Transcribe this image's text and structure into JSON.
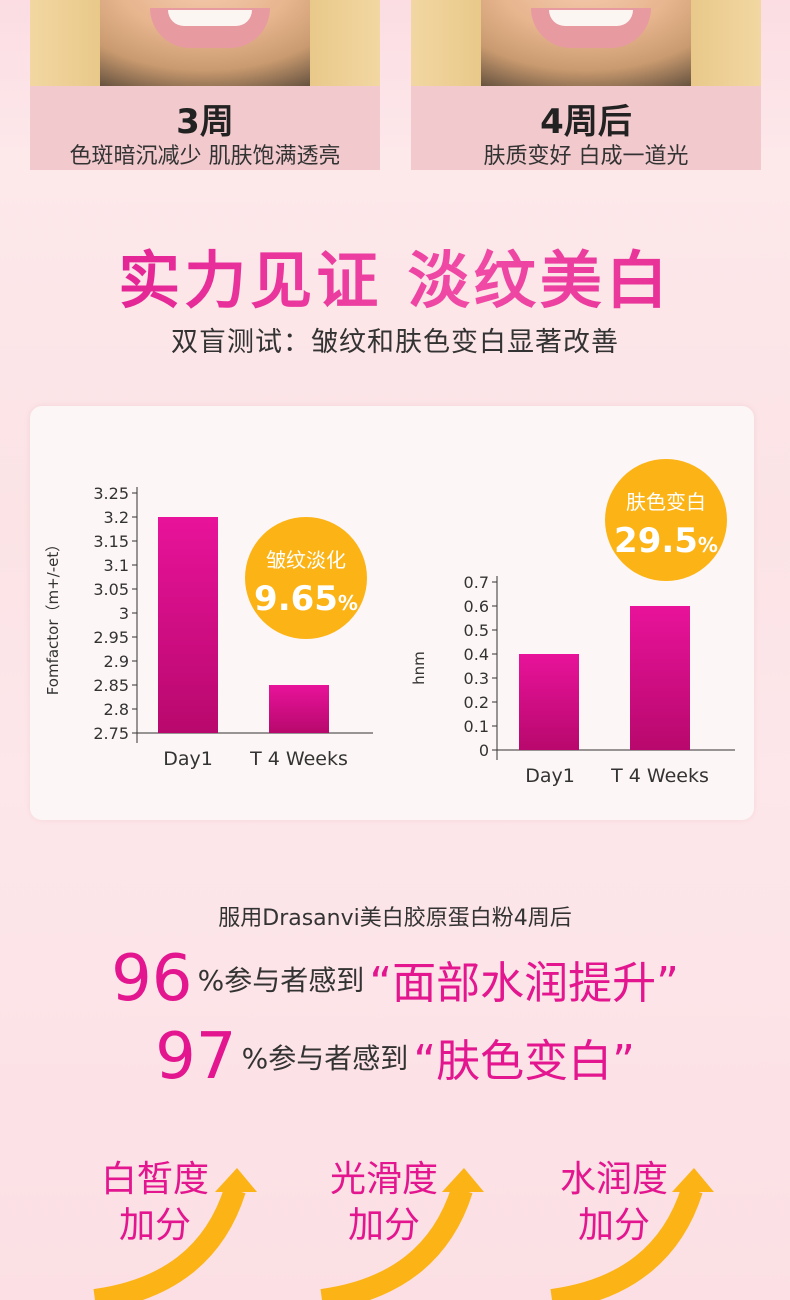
{
  "top_cards": [
    {
      "title": "3周",
      "subtitle": "色斑暗沉减少 肌肤饱满透亮"
    },
    {
      "title": "4周后",
      "subtitle": "肤质变好 白成一道光"
    }
  ],
  "section": {
    "title": "实力见证 淡纹美白",
    "subtitle": "双盲测试：皱纹和肤色变白显著改善"
  },
  "badges": [
    {
      "label": "皱纹淡化",
      "value": "9.65",
      "unit": "%"
    },
    {
      "label": "肤色变白",
      "value": "29.5",
      "unit": "%"
    }
  ],
  "chart_data": [
    {
      "type": "bar",
      "categories": [
        "Day1",
        "T 4 Weeks"
      ],
      "values": [
        3.2,
        2.85
      ],
      "ylabel": "Fomfactor（m+/-et）",
      "ylim": [
        2.75,
        3.25
      ],
      "yticks": [
        "2.75",
        "2.8",
        "2.85",
        "2.9",
        "2.95",
        "3",
        "3.05",
        "3.1",
        "3.15",
        "3.2",
        "3.25"
      ],
      "bar_color": "#e3168f"
    },
    {
      "type": "bar",
      "categories": [
        "Day1",
        "T 4 Weeks"
      ],
      "values": [
        0.4,
        0.6
      ],
      "ylabel": "hnm",
      "ylim": [
        0,
        0.7
      ],
      "yticks": [
        "0",
        "0.1",
        "0.2",
        "0.3",
        "0.4",
        "0.5",
        "0.6",
        "0.7"
      ],
      "bar_color": "#e3168f"
    }
  ],
  "results": {
    "intro": "服用Drasanvi美白胶原蛋白粉4周后",
    "lines": [
      {
        "num": "96",
        "mid": "%参与者感到",
        "highlight": "“面部水润提升”"
      },
      {
        "num": "97",
        "mid": "%参与者感到",
        "highlight": "“肤色变白”"
      }
    ]
  },
  "benefits": [
    {
      "line1": "白皙度",
      "line2": "加分"
    },
    {
      "line1": "光滑度",
      "line2": "加分"
    },
    {
      "line1": "水润度",
      "line2": "加分"
    }
  ],
  "colors": {
    "accent": "#e3168f",
    "badge": "#fcb316",
    "arrow": "#fcb316"
  }
}
